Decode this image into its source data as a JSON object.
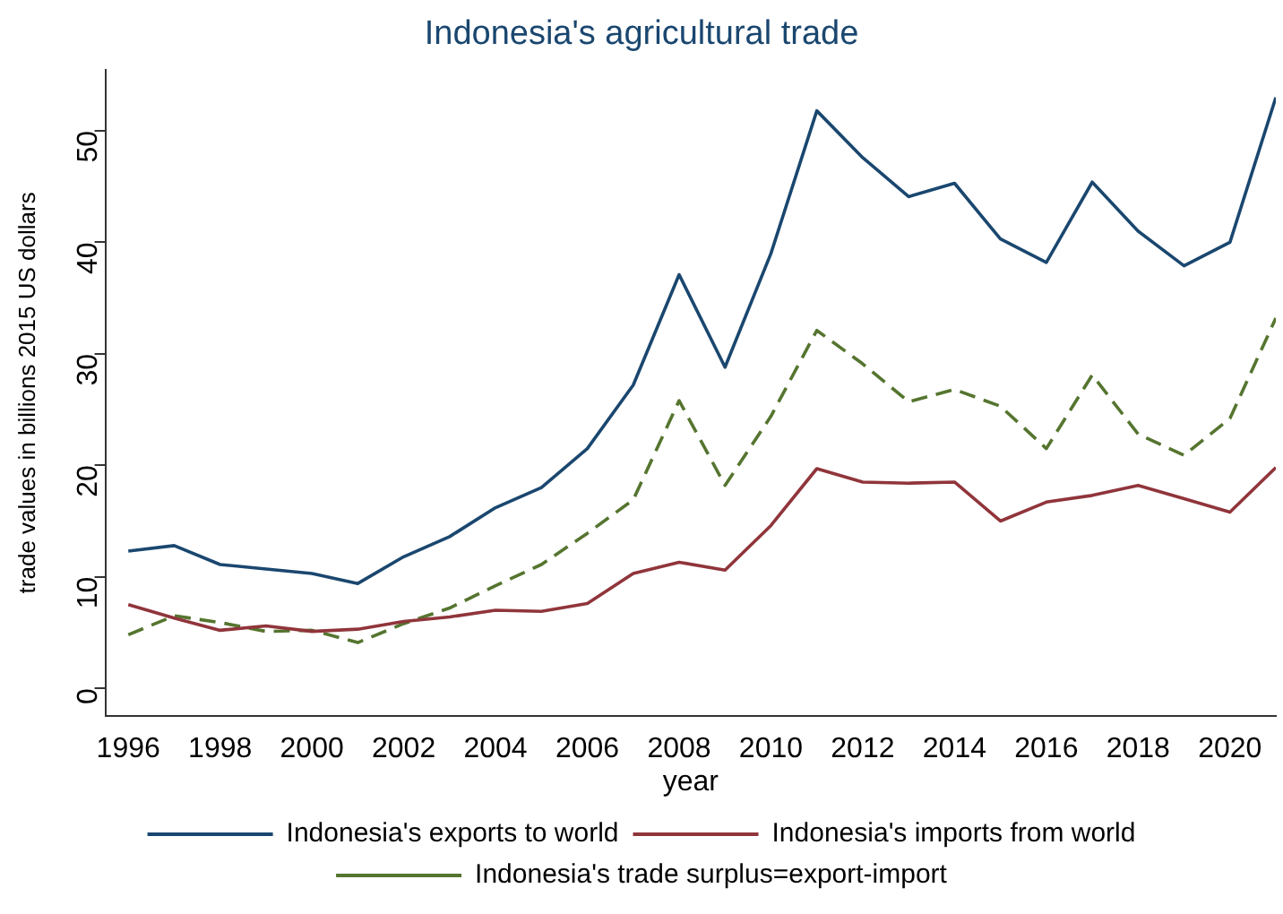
{
  "chart_data": {
    "type": "line",
    "title": "Indonesia's agricultural trade",
    "xlabel": "year",
    "ylabel": "trade values in billions 2015 US dollars",
    "x": [
      1996,
      1997,
      1998,
      1999,
      2000,
      2001,
      2002,
      2003,
      2004,
      2005,
      2006,
      2007,
      2008,
      2009,
      2010,
      2011,
      2012,
      2013,
      2014,
      2015,
      2016,
      2017,
      2018,
      2019,
      2020,
      2021
    ],
    "series": [
      {
        "name": "Indonesia's exports to world",
        "color": "#1a476f",
        "line_style": "solid",
        "values": [
          12.3,
          12.8,
          11.1,
          10.7,
          10.3,
          9.4,
          11.8,
          13.6,
          16.2,
          18,
          21.5,
          27.2,
          37.1,
          28.8,
          39,
          51.8,
          47.6,
          44.1,
          45.3,
          40.3,
          38.2,
          45.4,
          41,
          37.9,
          40,
          53
        ]
      },
      {
        "name": "Indonesia's imports from world",
        "color": "#90353b",
        "line_style": "solid",
        "values": [
          7.5,
          6.3,
          5.2,
          5.6,
          5.1,
          5.3,
          6,
          6.4,
          7,
          6.9,
          7.6,
          10.3,
          11.3,
          10.6,
          14.6,
          19.7,
          18.5,
          18.4,
          18.5,
          15,
          16.7,
          17.3,
          18.2,
          17,
          15.8,
          19.8
        ]
      },
      {
        "name": "Indonesia's trade surplus=export-import",
        "color": "#55752f",
        "line_style": "dashed",
        "values": [
          4.8,
          6.5,
          5.9,
          5.1,
          5.2,
          4.1,
          5.8,
          7.2,
          9.2,
          11.1,
          13.9,
          16.9,
          25.8,
          18.2,
          24.4,
          32.1,
          29.1,
          25.7,
          26.8,
          25.3,
          21.5,
          28.1,
          22.8,
          20.9,
          24.2,
          33.2
        ]
      }
    ],
    "xlim": [
      1995.5,
      2021
    ],
    "xticks": [
      1996,
      1998,
      2000,
      2002,
      2004,
      2006,
      2008,
      2010,
      2012,
      2014,
      2016,
      2018,
      2020
    ],
    "ylim": [
      -2.5,
      55.5
    ],
    "yticks": [
      0,
      10,
      20,
      30,
      40,
      50
    ],
    "grid": false,
    "legend": "bottom",
    "marker": "none"
  }
}
